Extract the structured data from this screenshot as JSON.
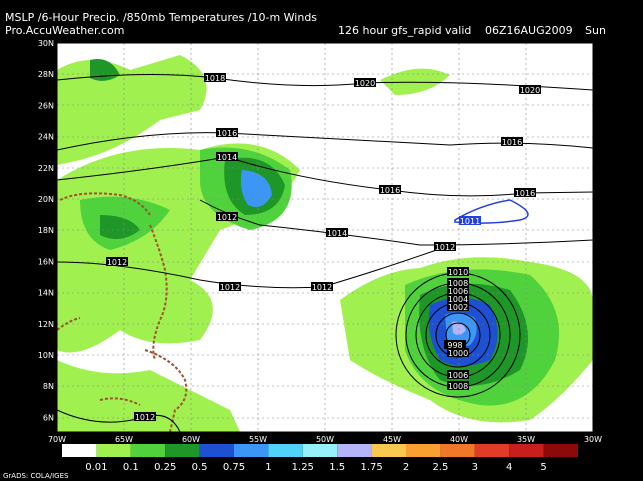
{
  "header": {
    "title": "MSLP /6-Hour Precip. /850mb Temperatures /10-m Winds",
    "source": "Pro.AccuWeather.com",
    "run": "126 hour gfs_rapid valid",
    "valid": "06Z16AUG2009",
    "day": "Sun"
  },
  "map": {
    "lat_labels": [
      "30N",
      "28N",
      "26N",
      "24N",
      "22N",
      "20N",
      "18N",
      "16N",
      "14N",
      "12N",
      "10N",
      "8N",
      "6N"
    ],
    "lon_labels": [
      "70W",
      "65W",
      "60W",
      "55W",
      "50W",
      "45W",
      "40W",
      "35W",
      "30W"
    ],
    "contour_labels": [
      "1018",
      "1020",
      "1020",
      "1016",
      "1016",
      "1014",
      "1016",
      "1016",
      "1012",
      "1014",
      "1011",
      "1012",
      "1012",
      "1012",
      "1012",
      "1010",
      "1008",
      "1006",
      "1004",
      "1002",
      "998",
      "1000",
      "1006",
      "1008",
      "1012"
    ]
  },
  "legend": {
    "labels": [
      "0.01",
      "0.1",
      "0.25",
      "0.5",
      "0.75",
      "1",
      "1.25",
      "1.5",
      "1.75",
      "2",
      "2.5",
      "3",
      "4",
      "5"
    ],
    "colors": [
      "#ffffff",
      "#a0f050",
      "#50d23c",
      "#1e9628",
      "#1e50d2",
      "#3c96f5",
      "#50d2fa",
      "#96f0fa",
      "#b4b4fa",
      "#fac850",
      "#faa032",
      "#f07828",
      "#e03c28",
      "#c81e1e",
      "#8c0a0a"
    ]
  },
  "footer": "GrADS: COLA/IGES"
}
